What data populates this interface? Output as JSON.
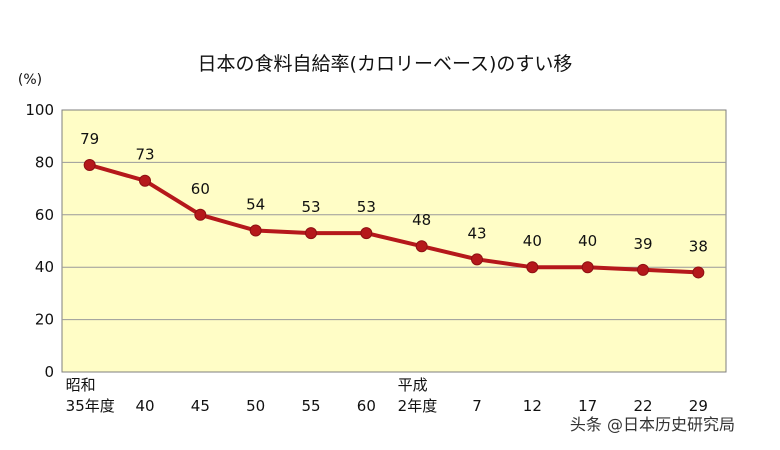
{
  "chart_data": {
    "type": "line",
    "title": "日本の食料自給率(カロリーベース)のすい移",
    "ylabel": "(%)",
    "xlabel": "",
    "ylim": [
      0,
      100
    ],
    "yticks": [
      0,
      20,
      40,
      60,
      80,
      100
    ],
    "grid": true,
    "legend": "none",
    "categories": [
      [
        "昭和",
        "35年度"
      ],
      [
        "40"
      ],
      [
        "45"
      ],
      [
        "50"
      ],
      [
        "55"
      ],
      [
        "60"
      ],
      [
        "平成",
        "2年度"
      ],
      [
        "7"
      ],
      [
        "12"
      ],
      [
        "17"
      ],
      [
        "22"
      ],
      [
        "29"
      ]
    ],
    "values": [
      79,
      73,
      60,
      54,
      53,
      53,
      48,
      43,
      40,
      40,
      39,
      38
    ],
    "data_labels": [
      "79",
      "73",
      "60",
      "54",
      "53",
      "53",
      "48",
      "43",
      "40",
      "40",
      "39",
      "38"
    ],
    "colors": {
      "plot_background": "#FFFDC6",
      "line": "#B5181B",
      "marker": "#B5181B",
      "grid": "#9A9A9A",
      "axis": "#7F7F7F"
    }
  },
  "watermark": "头条 @日本历史研究局"
}
